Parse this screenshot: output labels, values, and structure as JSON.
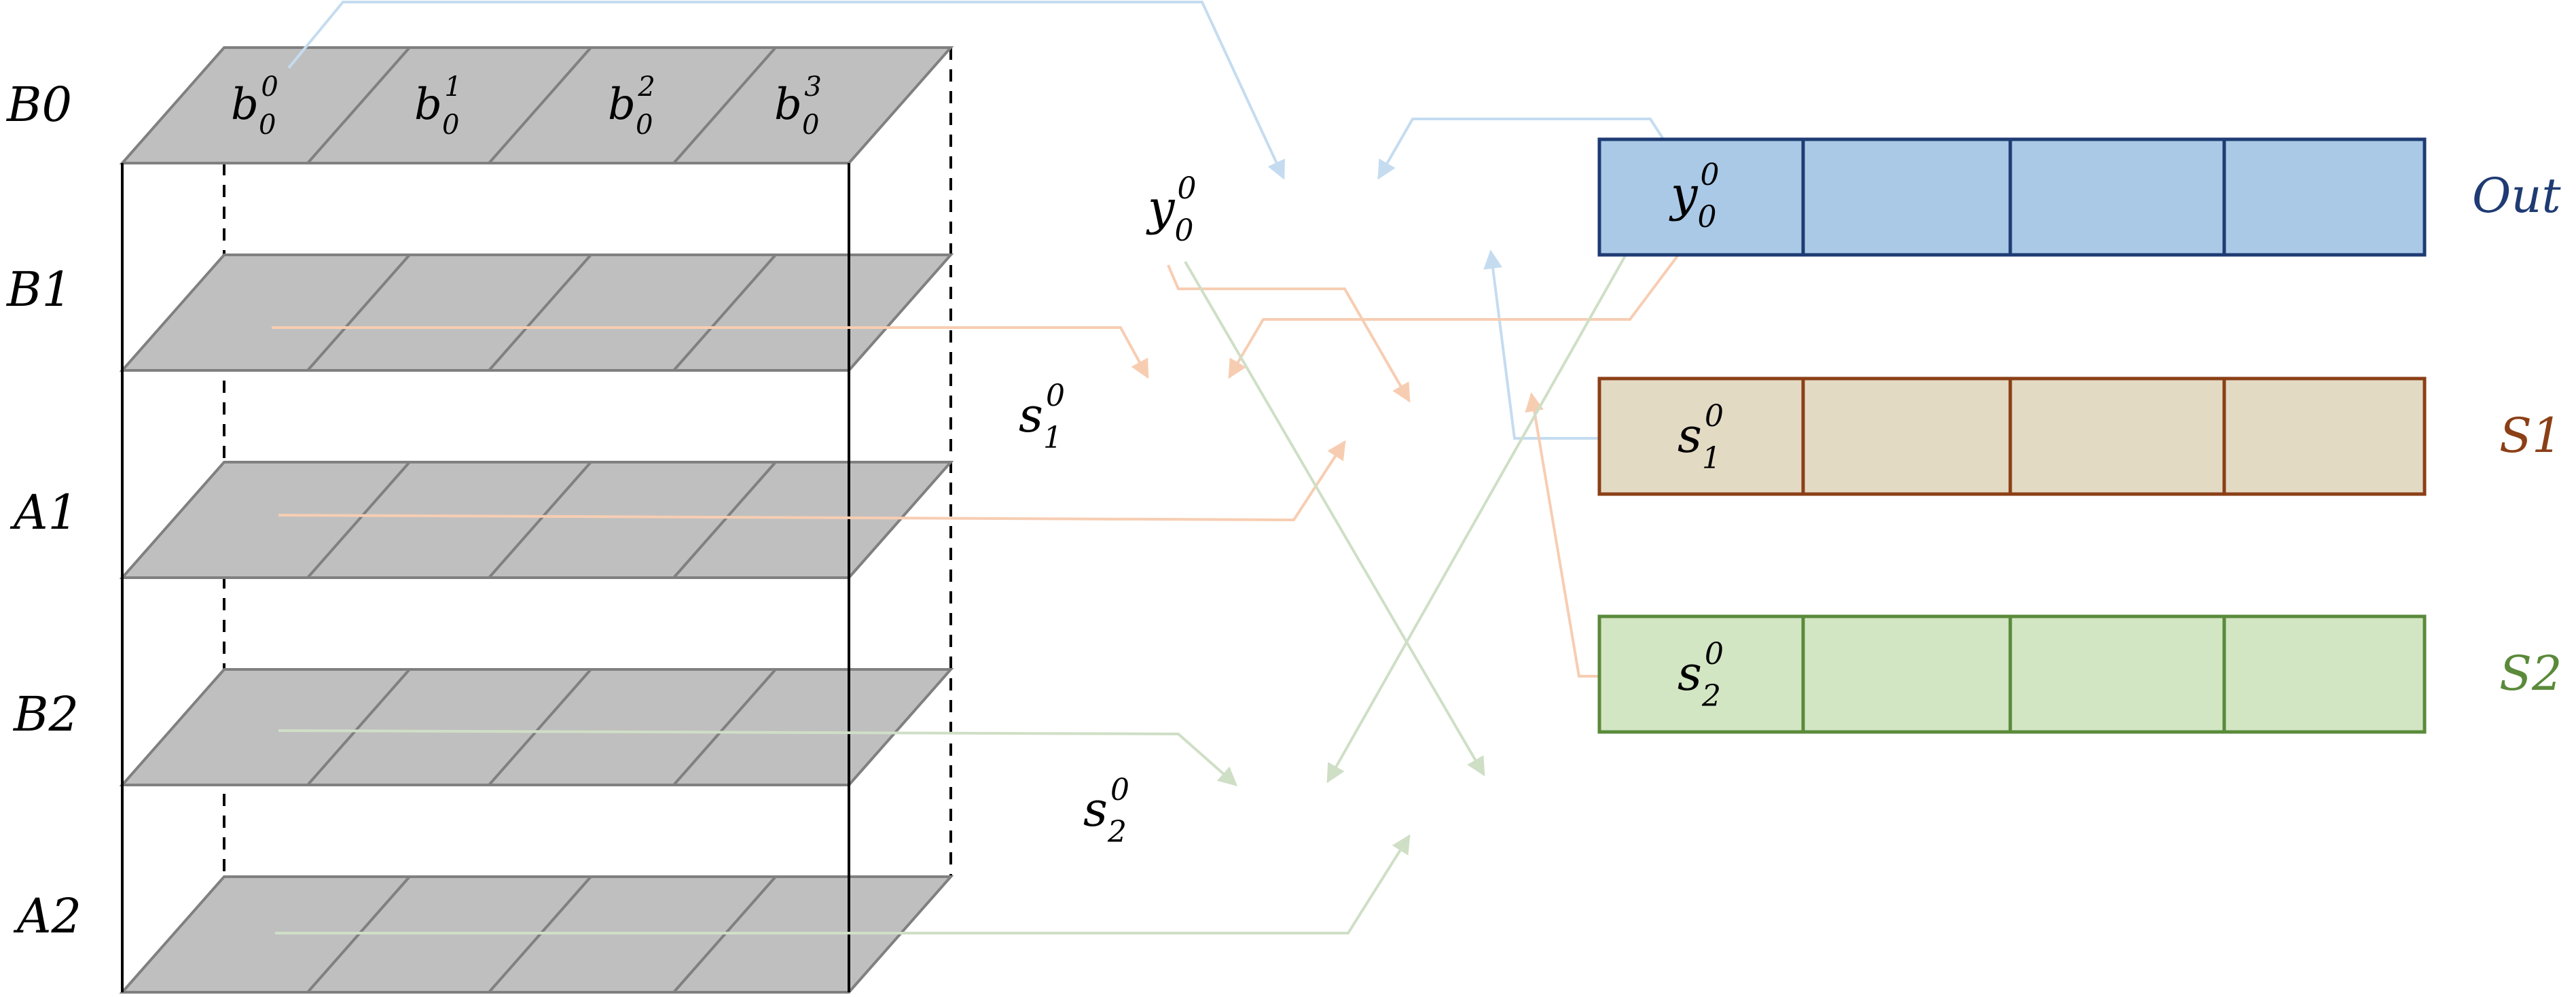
{
  "layer_labels": {
    "B0": "B0",
    "B1": "B1",
    "A1": "A1",
    "B2": "B2",
    "A2": "A2"
  },
  "b0_cells": [
    {
      "base": "b",
      "sub": "0",
      "sup": "0"
    },
    {
      "base": "b",
      "sub": "0",
      "sup": "1"
    },
    {
      "base": "b",
      "sub": "0",
      "sup": "2"
    },
    {
      "base": "b",
      "sub": "0",
      "sup": "3"
    }
  ],
  "middle": {
    "y": {
      "base": "y",
      "sub": "0",
      "sup": "0"
    },
    "s1": {
      "base": "s",
      "sub": "1",
      "sup": "0"
    },
    "s2": {
      "base": "s",
      "sub": "2",
      "sup": "0"
    }
  },
  "buffers": {
    "out": {
      "label": "Out",
      "cell": {
        "base": "y",
        "sub": "0",
        "sup": "0"
      },
      "fill": "#a9c9e7",
      "stroke": "#1f3b73",
      "label_color": "#1f3b73"
    },
    "s1": {
      "label": "S1",
      "cell": {
        "base": "s",
        "sub": "1",
        "sup": "0"
      },
      "fill": "#e3dac4",
      "stroke": "#8b3f16",
      "label_color": "#8b3f16"
    },
    "s2": {
      "label": "S2",
      "cell": {
        "base": "s",
        "sub": "2",
        "sup": "0"
      },
      "fill": "#d3e6c4",
      "stroke": "#5a8a3a",
      "label_color": "#5a8a3a"
    }
  },
  "colors": {
    "plane_fill": "#bfbfbf",
    "plane_stroke": "#808080",
    "blue_flow": "#c5dcf0",
    "orange_flow": "#f7cdb2",
    "green_flow": "#cfdfc6"
  }
}
